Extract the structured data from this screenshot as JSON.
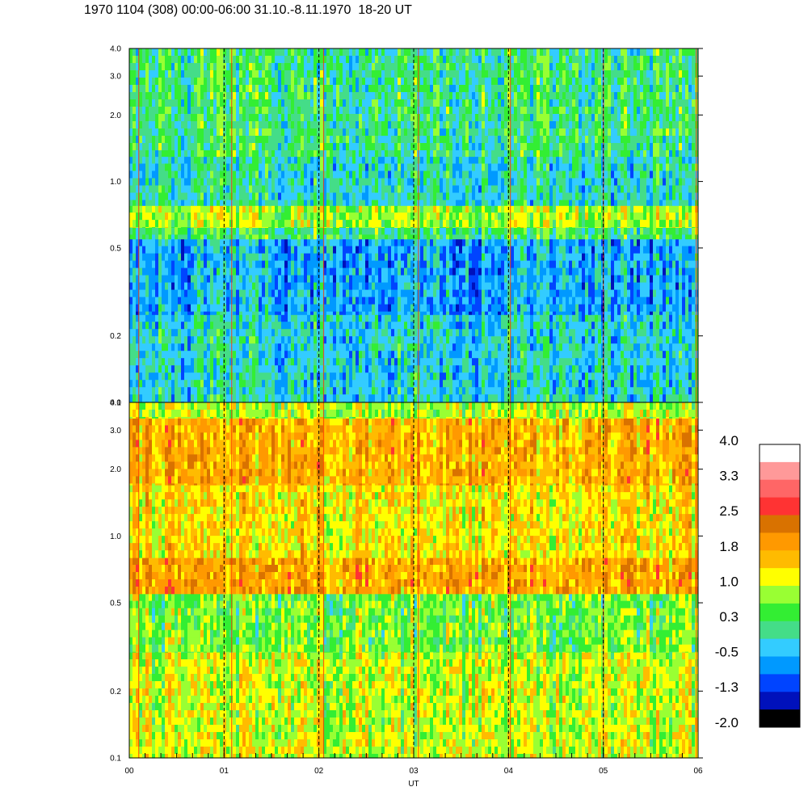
{
  "title": "1970 1104 (308) 00:00-06:00 31.10.-8.11.1970  18-20 UT",
  "chart_data": {
    "type": "heatmap",
    "panels": [
      {
        "name": "",
        "y_scale": "log",
        "ylim": [
          0.1,
          4.0
        ],
        "yticks": [
          "4.0",
          "3.0",
          "2.0",
          "1.0",
          "0.5",
          "0.2",
          "0.1"
        ],
        "ytick_values": [
          4.0,
          3.0,
          2.0,
          1.0,
          0.5,
          0.2,
          0.1
        ],
        "bands": [
          {
            "from": 0.1,
            "to": 0.25,
            "level": -0.2
          },
          {
            "from": 0.25,
            "to": 0.55,
            "level": -0.5
          },
          {
            "from": 0.55,
            "to": 0.62,
            "level": 0.3
          },
          {
            "from": 0.62,
            "to": 0.78,
            "level": 0.9
          },
          {
            "from": 0.78,
            "to": 1.3,
            "level": -0.1
          },
          {
            "from": 1.3,
            "to": 4.0,
            "level": 0.2
          }
        ]
      },
      {
        "name": "",
        "y_scale": "log",
        "ylim": [
          0.1,
          4.0
        ],
        "yticks": [
          "4.0",
          "3.0",
          "2.0",
          "1.0",
          "0.5",
          "0.2",
          "0.1"
        ],
        "ytick_values": [
          4.0,
          3.0,
          2.0,
          1.0,
          0.5,
          0.2,
          0.1
        ],
        "bands": [
          {
            "from": 0.1,
            "to": 0.3,
            "level": 1.0
          },
          {
            "from": 0.3,
            "to": 0.55,
            "level": 0.6
          },
          {
            "from": 0.55,
            "to": 0.8,
            "level": 1.8
          },
          {
            "from": 0.8,
            "to": 1.7,
            "level": 1.3
          },
          {
            "from": 1.7,
            "to": 3.4,
            "level": 1.7
          },
          {
            "from": 3.4,
            "to": 4.0,
            "level": 0.9
          }
        ]
      }
    ],
    "xlabel": "UT",
    "xticks": [
      "00",
      "01",
      "02",
      "03",
      "04",
      "05",
      "06"
    ],
    "xlim": [
      0,
      6
    ],
    "hour_markers": [
      1,
      2,
      3,
      4,
      5
    ],
    "grid": false,
    "colorbar": {
      "labels": [
        "4.0",
        "3.3",
        "2.5",
        "1.8",
        "1.0",
        "0.3",
        "-0.5",
        "-1.3",
        "-2.0"
      ],
      "colors": [
        "#ffffff",
        "#ff9999",
        "#ff6666",
        "#ff3333",
        "#d97200",
        "#ff9900",
        "#ffbb00",
        "#ffff00",
        "#99ff33",
        "#33ee33",
        "#44dd88",
        "#33ccff",
        "#0099ff",
        "#0044ff",
        "#0011bb",
        "#000000"
      ]
    }
  }
}
